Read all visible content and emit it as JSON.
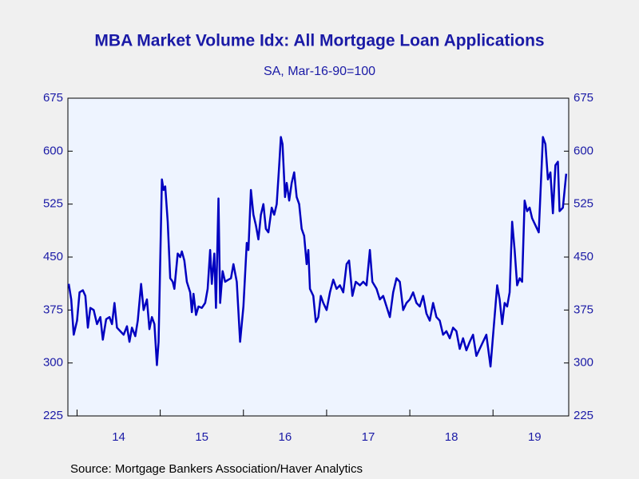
{
  "chart_data": {
    "type": "line",
    "title": "MBA Market Volume Idx: All Mortgage Loan Applications",
    "subtitle": "SA, Mar-16-90=100",
    "source": "Source:  Mortgage Bankers Association/Haver Analytics",
    "x": [
      2013.9,
      2013.93,
      2013.96,
      2014.0,
      2014.03,
      2014.07,
      2014.1,
      2014.13,
      2014.16,
      2014.2,
      2014.24,
      2014.28,
      2014.31,
      2014.35,
      2014.39,
      2014.42,
      2014.45,
      2014.48,
      2014.52,
      2014.56,
      2014.6,
      2014.63,
      2014.66,
      2014.7,
      2014.73,
      2014.77,
      2014.8,
      2014.84,
      2014.87,
      2014.9,
      2014.93,
      2014.96,
      2014.98,
      2015.02,
      2015.04,
      2015.06,
      2015.09,
      2015.12,
      2015.15,
      2015.17,
      2015.21,
      2015.24,
      2015.26,
      2015.29,
      2015.32,
      2015.36,
      2015.38,
      2015.4,
      2015.43,
      2015.46,
      2015.5,
      2015.54,
      2015.57,
      2015.6,
      2015.62,
      2015.65,
      2015.67,
      2015.7,
      2015.72,
      2015.75,
      2015.78,
      2015.82,
      2015.85,
      2015.88,
      2015.92,
      2015.96,
      2016.0,
      2016.04,
      2016.06,
      2016.09,
      2016.12,
      2016.15,
      2016.18,
      2016.21,
      2016.24,
      2016.27,
      2016.3,
      2016.34,
      2016.37,
      2016.4,
      2016.43,
      2016.45,
      2016.47,
      2016.5,
      2016.52,
      2016.55,
      2016.58,
      2016.61,
      2016.64,
      2016.67,
      2016.7,
      2016.73,
      2016.76,
      2016.78,
      2016.8,
      2016.84,
      2016.87,
      2016.9,
      2016.93,
      2016.96,
      2017.0,
      2017.04,
      2017.08,
      2017.12,
      2017.16,
      2017.2,
      2017.24,
      2017.27,
      2017.31,
      2017.35,
      2017.4,
      2017.44,
      2017.48,
      2017.52,
      2017.55,
      2017.6,
      2017.64,
      2017.68,
      2017.72,
      2017.76,
      2017.8,
      2017.84,
      2017.88,
      2017.92,
      2017.96,
      2018.0,
      2018.04,
      2018.08,
      2018.12,
      2018.16,
      2018.2,
      2018.24,
      2018.28,
      2018.32,
      2018.36,
      2018.4,
      2018.44,
      2018.48,
      2018.52,
      2018.56,
      2018.6,
      2018.64,
      2018.68,
      2018.72,
      2018.76,
      2018.8,
      2018.84,
      2018.88,
      2018.92,
      2018.97,
      2019.05,
      2019.08,
      2019.11,
      2019.14,
      2019.17,
      2019.2,
      2019.23,
      2019.26,
      2019.29,
      2019.32,
      2019.35,
      2019.38,
      2019.41,
      2019.44,
      2019.47,
      2019.51,
      2019.55,
      2019.6,
      2019.63,
      2019.66,
      2019.69,
      2019.72,
      2019.75,
      2019.78,
      2019.8,
      2019.84,
      2019.88
    ],
    "series": [
      {
        "name": "MBA Market Volume Idx",
        "color": "#0000c0",
        "values": [
          412,
          390,
          340,
          360,
          400,
          403,
          395,
          350,
          378,
          375,
          355,
          365,
          333,
          362,
          365,
          355,
          385,
          350,
          345,
          340,
          352,
          330,
          350,
          338,
          360,
          412,
          375,
          390,
          348,
          365,
          355,
          297,
          330,
          560,
          545,
          550,
          500,
          420,
          415,
          405,
          455,
          450,
          458,
          445,
          415,
          400,
          372,
          398,
          368,
          380,
          378,
          385,
          405,
          460,
          412,
          455,
          378,
          533,
          385,
          430,
          415,
          418,
          420,
          440,
          415,
          330,
          380,
          470,
          460,
          545,
          510,
          495,
          475,
          510,
          525,
          490,
          485,
          520,
          510,
          525,
          580,
          620,
          610,
          535,
          555,
          530,
          555,
          570,
          535,
          525,
          490,
          480,
          440,
          460,
          405,
          395,
          358,
          365,
          395,
          385,
          375,
          400,
          418,
          405,
          410,
          400,
          440,
          445,
          395,
          415,
          410,
          415,
          410,
          460,
          415,
          405,
          390,
          395,
          380,
          365,
          400,
          420,
          415,
          375,
          385,
          390,
          400,
          385,
          380,
          395,
          370,
          360,
          385,
          365,
          360,
          340,
          345,
          335,
          350,
          345,
          320,
          335,
          318,
          330,
          340,
          310,
          320,
          330,
          340,
          295,
          410,
          390,
          355,
          385,
          380,
          400,
          500,
          460,
          410,
          420,
          415,
          530,
          515,
          520,
          505,
          495,
          485,
          620,
          610,
          560,
          570,
          512,
          580,
          585,
          515,
          520,
          568
        ]
      }
    ],
    "xlim": [
      2013.89,
      2019.91
    ],
    "xticks": [
      {
        "value": 2014,
        "label": "14"
      },
      {
        "value": 2015,
        "label": "15"
      },
      {
        "value": 2016,
        "label": "16"
      },
      {
        "value": 2017,
        "label": "17"
      },
      {
        "value": 2018,
        "label": "18"
      },
      {
        "value": 2019,
        "label": "19"
      }
    ],
    "ylim": [
      225,
      675
    ],
    "yticks": [
      225,
      300,
      375,
      450,
      525,
      600,
      675
    ],
    "y2lim": [
      225,
      675
    ],
    "y2ticks": [
      225,
      300,
      375,
      450,
      525,
      600,
      675
    ]
  }
}
